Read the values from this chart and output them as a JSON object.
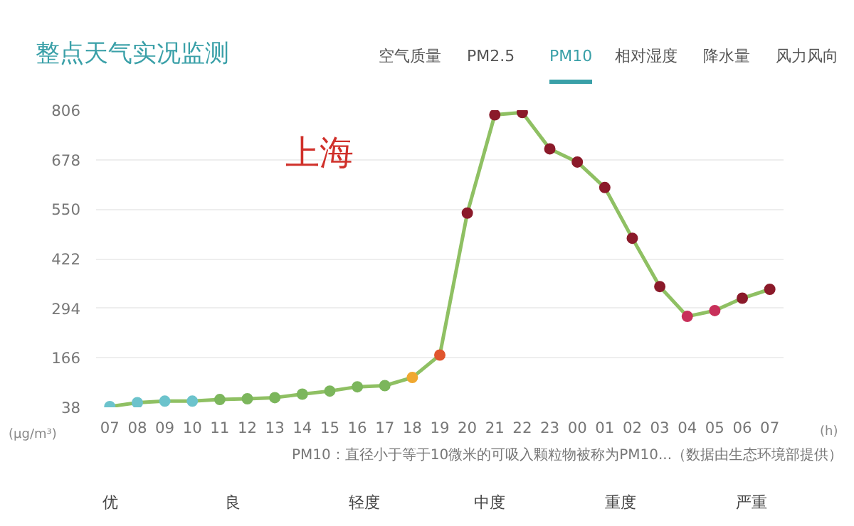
{
  "chart_data": {
    "type": "line",
    "title": "整点天气实况监测",
    "subtitle": "上海",
    "xlabel": "(h)",
    "ylabel": "(μg/m³)",
    "categories": [
      "07",
      "08",
      "09",
      "10",
      "11",
      "12",
      "13",
      "14",
      "15",
      "16",
      "17",
      "18",
      "19",
      "20",
      "21",
      "22",
      "23",
      "00",
      "01",
      "02",
      "03",
      "04",
      "05",
      "06",
      "07"
    ],
    "series": [
      {
        "color": "#8fc063",
        "colors": [
          "#6cc3cc",
          "#6cc3cc",
          "#6cc3cc",
          "#6cc3cc",
          "#7cb65c",
          "#7cb65c",
          "#7cb65c",
          "#7cb65c",
          "#7cb65c",
          "#7cb65c",
          "#7cb65c",
          "#f0a830",
          "#e0552e",
          "#8b1a2a",
          "#8b1a2a",
          "#8b1a2a",
          "#8b1a2a",
          "#8b1a2a",
          "#8b1a2a",
          "#8b1a2a",
          "#8b1a2a",
          "#c8305a",
          "#c8305a",
          "#8b1a2a",
          "#8b1a2a"
        ],
        "values": [
          40,
          50,
          54,
          54,
          58,
          60,
          63,
          72,
          80,
          91,
          94,
          115,
          173,
          540,
          794,
          800,
          706,
          672,
          606,
          475,
          350,
          273,
          288,
          320,
          343
        ]
      }
    ],
    "ylim": [
      38,
      806
    ],
    "yticks": [
      38,
      166,
      294,
      422,
      550,
      678,
      806
    ],
    "grid": "y",
    "marker": "circle",
    "line_style": "solid",
    "annotations": [
      "空气质量",
      "PM2.5",
      "PM10",
      "相对湿度",
      "降水量",
      "风力风向",
      "PM10：直径小于等于10微米的可吸入颗粒物被称为PM10...（数据由生态环境部提供）",
      "优",
      "良",
      "轻度",
      "中度",
      "重度",
      "严重"
    ]
  }
}
